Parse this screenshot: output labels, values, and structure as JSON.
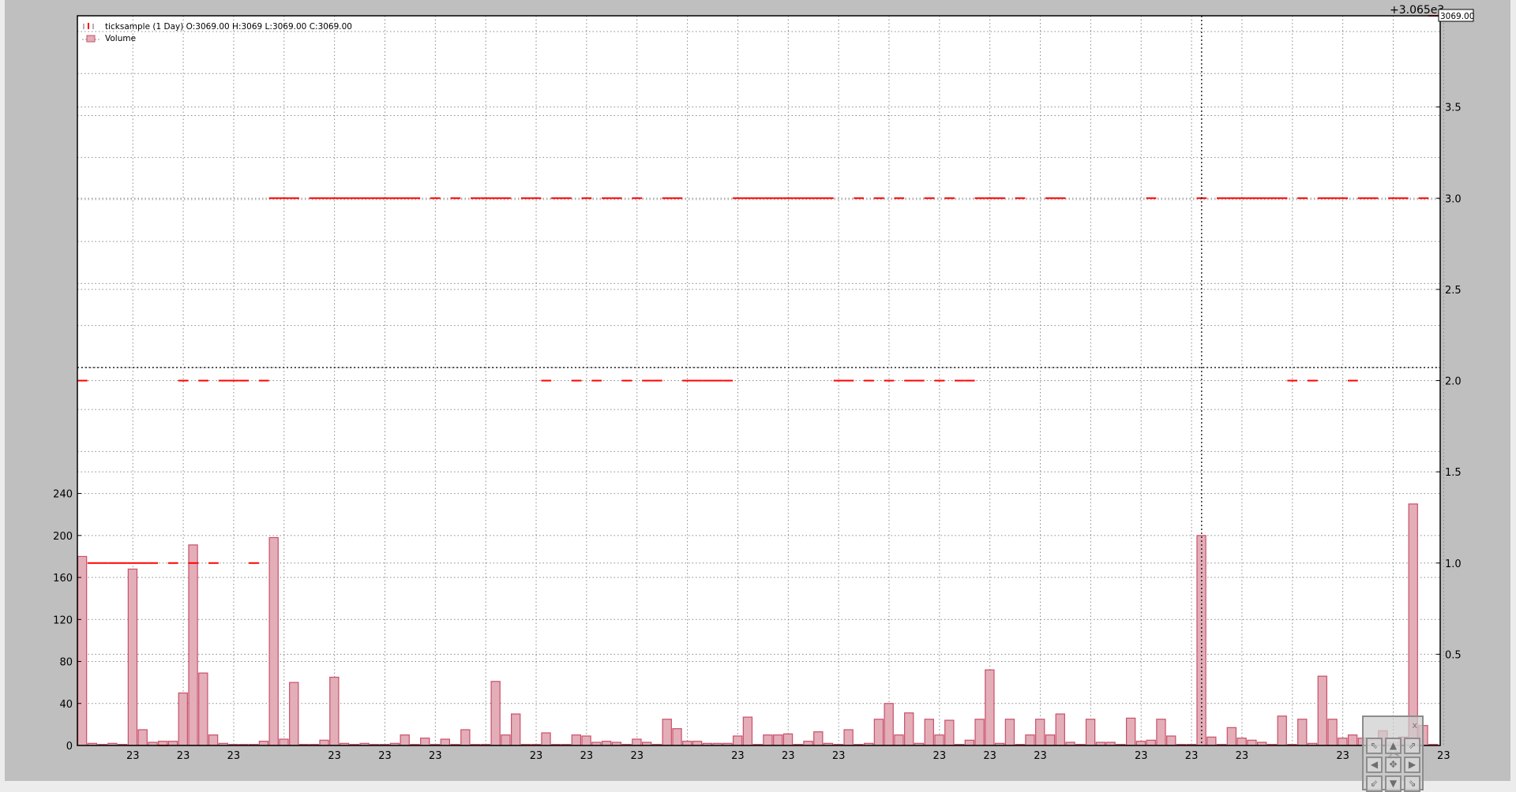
{
  "legend": {
    "price_label": "ticksample (1 Day) O:3069.00 H:3069 L:3069.00 C:3069.00",
    "volume_label": "Volume"
  },
  "price_axis": {
    "offset_label": "+3.065e3",
    "last_value_tag": "3069.00"
  },
  "nav_widget": {
    "close_label": "x"
  },
  "colors": {
    "background": "#bfbfbf",
    "plot_bg": "#ffffff",
    "price_line": "#ff0000",
    "volume_fill": "#e3aeb8",
    "volume_edge": "#c9506a",
    "grid": "#8a8a8a",
    "crosshair": "#000000"
  },
  "chart_data": {
    "type": "bar+line",
    "title": "",
    "grid": true,
    "legend_position": "top-left",
    "price_series": {
      "name": "ticksample (1 Day)",
      "ylim": [
        3065,
        3069
      ],
      "tick_values": [
        3065.5,
        3066.0,
        3066.5,
        3067.0,
        3067.5,
        3068.0,
        3068.5
      ],
      "tick_labels": [
        "0.5",
        "1.0",
        "1.5",
        "2.0",
        "2.5",
        "3.0",
        "3.5"
      ],
      "close": [
        3067,
        3066,
        3066,
        3066,
        3066,
        3066,
        3066,
        3066,
        3065,
        3066,
        3067,
        3066,
        3067,
        3066,
        3067,
        3067,
        3067,
        3066,
        3067,
        3068,
        3068,
        3068,
        null,
        3068,
        3068,
        3068,
        3068,
        3068,
        3068,
        3068,
        3068,
        3068,
        3068,
        3068,
        null,
        3068,
        null,
        3068,
        null,
        3068,
        3068,
        3068,
        3068,
        null,
        3068,
        3068,
        3067,
        3068,
        3068,
        3067,
        3068,
        3067,
        3068,
        3068,
        3067,
        3068,
        3067,
        3067,
        3068,
        3068,
        3067,
        3067,
        3067,
        3067,
        3067,
        3068,
        3068,
        3068,
        3068,
        3068,
        3068,
        3068,
        3068,
        3068,
        3068,
        3067,
        3067,
        3068,
        3067,
        3068,
        3067,
        3068,
        3067,
        3067,
        3068,
        3067,
        3068,
        3067,
        3067,
        3068,
        3068,
        3068,
        null,
        3068,
        null,
        null,
        3068,
        3068,
        null,
        null,
        null,
        null,
        null,
        null,
        null,
        null,
        3068,
        null,
        null,
        null,
        null,
        3068,
        null,
        3068,
        3068,
        3068,
        3068,
        3068,
        3068,
        3068,
        3067,
        3068,
        3067,
        3068,
        3068,
        3068,
        3067,
        3068,
        3068,
        null,
        3068,
        3068,
        null,
        3068,
        3069
      ]
    },
    "volume_series": {
      "name": "Volume",
      "ylim": [
        0,
        695
      ],
      "tick_values": [
        0,
        40,
        80,
        120,
        160,
        200,
        240
      ],
      "values": [
        180,
        2,
        1,
        2,
        1,
        168,
        15,
        3,
        4,
        4,
        50,
        191,
        69,
        10,
        2,
        1,
        1,
        1,
        4,
        198,
        6,
        60,
        1,
        1,
        5,
        65,
        2,
        1,
        2,
        1,
        1,
        2,
        10,
        1,
        7,
        1,
        6,
        1,
        15,
        1,
        1,
        61,
        10,
        30,
        1,
        1,
        12,
        1,
        1,
        10,
        9,
        3,
        4,
        3,
        1,
        6,
        3,
        1,
        25,
        16,
        4,
        4,
        2,
        2,
        2,
        9,
        27,
        1,
        10,
        10,
        11,
        1,
        4,
        13,
        2,
        1,
        15,
        1,
        2,
        25,
        40,
        10,
        31,
        2,
        25,
        10,
        24,
        1,
        5,
        25,
        72,
        2,
        25,
        1,
        10,
        25,
        10,
        30,
        3,
        1,
        25,
        3,
        3,
        1,
        26,
        4,
        5,
        25,
        9,
        1,
        1,
        200,
        8,
        1,
        17,
        7,
        5,
        3,
        1,
        28,
        1,
        25,
        2,
        66,
        25,
        7,
        10,
        7,
        5,
        14,
        3,
        8,
        230,
        19,
        1
      ]
    },
    "x_ticks": {
      "positions": [
        5,
        10,
        15,
        20,
        25,
        30,
        35,
        40,
        45,
        50,
        55,
        60,
        65,
        70,
        75,
        80,
        85,
        90,
        95,
        100,
        105,
        110,
        115,
        120,
        125,
        130,
        135
      ],
      "labels": [
        "23",
        "23",
        "23",
        "",
        "23",
        "23",
        "23",
        "",
        "23",
        "23",
        "23",
        "",
        "23",
        "23",
        "23",
        "",
        "23",
        "23",
        "23",
        "",
        "23",
        "23",
        "23",
        "",
        "23",
        "23",
        "23"
      ]
    },
    "crosshair": {
      "bar_index": 111,
      "volume_level": 360
    }
  }
}
